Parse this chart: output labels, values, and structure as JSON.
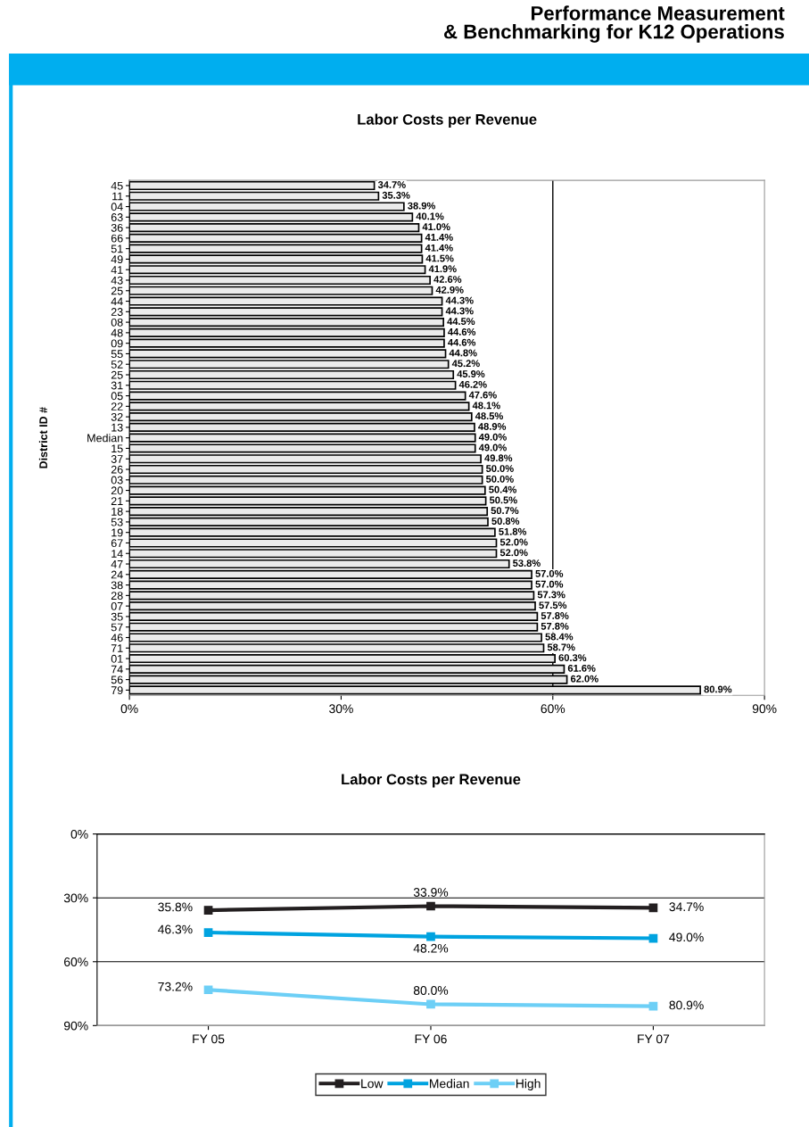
{
  "chart_data": [
    {
      "type": "bar",
      "title": "Labor Costs per Revenue",
      "ylabel": "District ID #",
      "orientation": "horizontal",
      "annotations": [
        "Performance Measurement\n& Benchmarking for K12 Operations"
      ],
      "categories": [
        "45",
        "11",
        "04",
        "63",
        "36",
        "66",
        "51",
        "49",
        "41",
        "43",
        "25",
        "44",
        "23",
        "08",
        "48",
        "09",
        "55",
        "52",
        "25",
        "31",
        "05",
        "22",
        "32",
        "13",
        "Median",
        "15",
        "37",
        "26",
        "03",
        "20",
        "21",
        "18",
        "53",
        "19",
        "67",
        "14",
        "47",
        "24",
        "38",
        "28",
        "07",
        "35",
        "57",
        "46",
        "71",
        "01",
        "74",
        "56",
        "79"
      ],
      "values": [
        34.7,
        35.3,
        38.9,
        40.1,
        41.0,
        41.4,
        41.4,
        41.5,
        41.9,
        42.6,
        42.9,
        44.3,
        44.3,
        44.5,
        44.6,
        44.6,
        44.8,
        45.2,
        45.9,
        46.2,
        47.6,
        48.1,
        48.5,
        48.9,
        49.0,
        49.0,
        49.8,
        50.0,
        50.0,
        50.4,
        50.5,
        50.7,
        50.8,
        51.8,
        52.0,
        52.0,
        53.8,
        57.0,
        57.0,
        57.3,
        57.5,
        57.8,
        57.8,
        58.4,
        58.7,
        60.3,
        61.6,
        62.0,
        80.9
      ],
      "value_labels": [
        "34.7%",
        "35.3%",
        "38.9%",
        "40.1%",
        "41.0%",
        "41.4%",
        "41.4%",
        "41.5%",
        "41.9%",
        "42.6%",
        "42.9%",
        "44.3%",
        "44.3%",
        "44.5%",
        "44.6%",
        "44.6%",
        "44.8%",
        "45.2%",
        "45.9%",
        "46.2%",
        "47.6%",
        "48.1%",
        "48.5%",
        "48.9%",
        "49.0%",
        "49.0%",
        "49.8%",
        "50.0%",
        "50.0%",
        "50.4%",
        "50.5%",
        "50.7%",
        "50.8%",
        "51.8%",
        "52.0%",
        "52.0%",
        "53.8%",
        "57.0%",
        "57.0%",
        "57.3%",
        "57.5%",
        "57.8%",
        "57.8%",
        "58.4%",
        "58.7%",
        "60.3%",
        "61.6%",
        "62.0%",
        "80.9%"
      ],
      "color": "#ebebeb",
      "xlim": [
        0,
        90
      ],
      "xticks": [
        {
          "value": 0,
          "label": "0%"
        },
        {
          "value": 30,
          "label": "30%"
        },
        {
          "value": 60,
          "label": "60%"
        },
        {
          "value": 90,
          "label": "90%"
        }
      ],
      "ref_lines": [
        {
          "axis": "x",
          "value": 60,
          "color": "#000000"
        }
      ],
      "grid": false
    },
    {
      "type": "line",
      "title": "Labor Costs per Revenue",
      "categories": [
        "FY 05",
        "FY 06",
        "FY 07"
      ],
      "series": [
        {
          "name": "Low",
          "color": "#231f20",
          "values": [
            35.8,
            33.9,
            34.7
          ],
          "value_labels": [
            "35.8%",
            "33.9%",
            "34.7%"
          ]
        },
        {
          "name": "Median",
          "color": "#00a3e0",
          "values": [
            46.3,
            48.2,
            49.0
          ],
          "value_labels": [
            "46.3%",
            "48.2%",
            "49.0%"
          ]
        },
        {
          "name": "High",
          "color": "#6dcff6",
          "values": [
            73.2,
            80.0,
            80.9
          ],
          "value_labels": [
            "73.2%",
            "80.0%",
            "80.9%"
          ]
        }
      ],
      "ylim": [
        90,
        0
      ],
      "yticks": [
        {
          "value": 0,
          "label": "0%"
        },
        {
          "value": 30,
          "label": "30%"
        },
        {
          "value": 60,
          "label": "60%"
        },
        {
          "value": 90,
          "label": "90%"
        }
      ],
      "grid": "y",
      "marker": "square",
      "line_style": "solid",
      "legend": "bottom"
    }
  ]
}
